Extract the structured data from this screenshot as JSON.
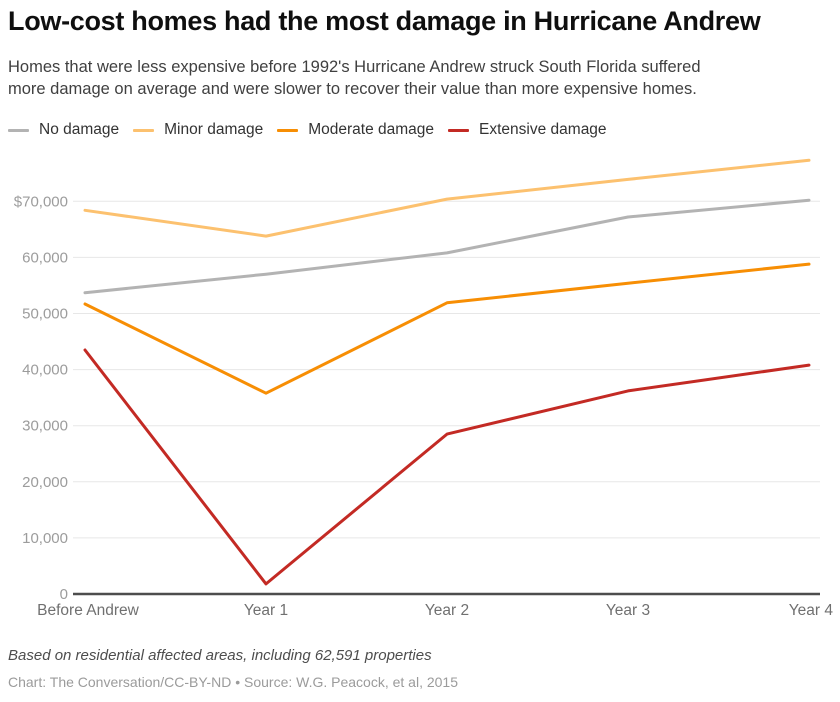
{
  "header": {
    "title": "Low-cost homes had the most damage in Hurricane Andrew",
    "subtitle_lines": [
      "Homes that were less expensive before 1992's Hurricane Andrew struck South Florida suffered",
      "more damage on average and were slower to recover their value than more expensive homes."
    ]
  },
  "footer": {
    "note": "Based on residential affected areas, including 62,591 properties",
    "credit": "Chart: The Conversation/CC-BY-ND • Source: W.G. Peacock, et al, 2015"
  },
  "colors": {
    "grid": "#e7e7e7",
    "axis": "#4d4d4d",
    "ytick_text": "#9c9c9c",
    "xtick_text": "#707070"
  },
  "chart_data": {
    "type": "line",
    "title": "Low-cost homes had the most damage in Hurricane Andrew",
    "categories": [
      "Before Andrew",
      "Year 1",
      "Year 2",
      "Year 3",
      "Year 4"
    ],
    "series": [
      {
        "name": "No damage",
        "color": "#b3b3b3",
        "values": [
          53700,
          57000,
          60800,
          67200,
          70200
        ]
      },
      {
        "name": "Minor damage",
        "color": "#fcc16f",
        "values": [
          68400,
          63800,
          70400,
          73900,
          77300
        ]
      },
      {
        "name": "Moderate damage",
        "color": "#f78e04",
        "values": [
          51700,
          35800,
          51900,
          55400,
          58800
        ]
      },
      {
        "name": "Extensive damage",
        "color": "#c32a24",
        "values": [
          43500,
          1800,
          28500,
          36200,
          40800
        ]
      }
    ],
    "yticks": [
      0,
      10000,
      20000,
      30000,
      40000,
      50000,
      60000,
      70000
    ],
    "ytick_labels": [
      "0",
      "10,000",
      "20,000",
      "30,000",
      "40,000",
      "50,000",
      "60,000",
      "$70,000"
    ],
    "ylim": [
      0,
      78200
    ],
    "xlabel": "",
    "ylabel": "",
    "grid": "horizontal",
    "legend_position": "top"
  }
}
